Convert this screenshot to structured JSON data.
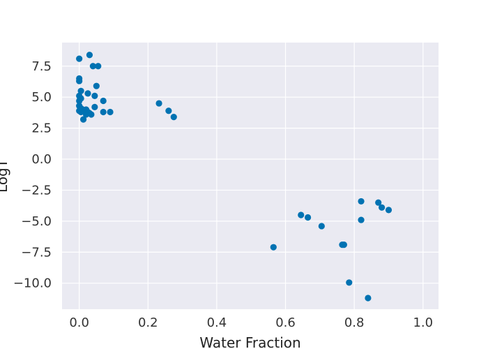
{
  "chart_data": {
    "type": "scatter",
    "title": "",
    "xlabel": "Water Fraction",
    "ylabel": "LogT",
    "xlim": [
      -0.05,
      1.045
    ],
    "ylim": [
      -12.1,
      9.4
    ],
    "xticks": [
      0.0,
      0.2,
      0.4,
      0.6,
      0.8,
      1.0
    ],
    "xtick_labels": [
      "0.0",
      "0.2",
      "0.4",
      "0.6",
      "0.8",
      "1.0"
    ],
    "yticks": [
      -10.0,
      -7.5,
      -5.0,
      -2.5,
      0.0,
      2.5,
      5.0,
      7.5
    ],
    "ytick_labels": [
      "−10.0",
      "−7.5",
      "−5.0",
      "−2.5",
      "0.0",
      "2.5",
      "5.0",
      "7.5"
    ],
    "grid": true,
    "background_color": "#eaeaf2",
    "grid_color": "#ffffff",
    "marker_color": "#0072b2",
    "points": [
      {
        "x": 0.0,
        "y": 8.1
      },
      {
        "x": 0.03,
        "y": 8.4
      },
      {
        "x": 0.04,
        "y": 7.5
      },
      {
        "x": 0.055,
        "y": 7.5
      },
      {
        "x": 0.0,
        "y": 6.5
      },
      {
        "x": 0.0,
        "y": 6.3
      },
      {
        "x": 0.05,
        "y": 5.9
      },
      {
        "x": 0.005,
        "y": 5.5
      },
      {
        "x": 0.025,
        "y": 5.3
      },
      {
        "x": 0.0,
        "y": 5.1
      },
      {
        "x": 0.045,
        "y": 5.1
      },
      {
        "x": 0.005,
        "y": 4.9
      },
      {
        "x": 0.0,
        "y": 4.7
      },
      {
        "x": 0.07,
        "y": 4.7
      },
      {
        "x": 0.0,
        "y": 4.3
      },
      {
        "x": 0.005,
        "y": 4.1
      },
      {
        "x": 0.045,
        "y": 4.2
      },
      {
        "x": 0.01,
        "y": 4.0
      },
      {
        "x": 0.0,
        "y": 3.9
      },
      {
        "x": 0.015,
        "y": 3.9
      },
      {
        "x": 0.02,
        "y": 4.0
      },
      {
        "x": 0.005,
        "y": 3.8
      },
      {
        "x": 0.025,
        "y": 3.8
      },
      {
        "x": 0.03,
        "y": 3.7
      },
      {
        "x": 0.035,
        "y": 3.6
      },
      {
        "x": 0.02,
        "y": 3.6
      },
      {
        "x": 0.07,
        "y": 3.8
      },
      {
        "x": 0.09,
        "y": 3.8
      },
      {
        "x": 0.012,
        "y": 3.2
      },
      {
        "x": 0.232,
        "y": 4.5
      },
      {
        "x": 0.26,
        "y": 3.9
      },
      {
        "x": 0.275,
        "y": 3.4
      },
      {
        "x": 0.565,
        "y": -7.1
      },
      {
        "x": 0.645,
        "y": -4.5
      },
      {
        "x": 0.665,
        "y": -4.7
      },
      {
        "x": 0.705,
        "y": -5.4
      },
      {
        "x": 0.765,
        "y": -6.9
      },
      {
        "x": 0.77,
        "y": -6.9
      },
      {
        "x": 0.785,
        "y": -9.95
      },
      {
        "x": 0.82,
        "y": -3.4
      },
      {
        "x": 0.82,
        "y": -4.9
      },
      {
        "x": 0.84,
        "y": -11.2
      },
      {
        "x": 0.87,
        "y": -3.5
      },
      {
        "x": 0.88,
        "y": -3.9
      },
      {
        "x": 0.9,
        "y": -4.1
      }
    ]
  }
}
